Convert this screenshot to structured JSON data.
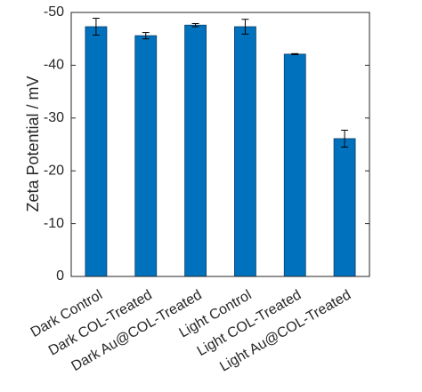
{
  "chart_data": {
    "type": "bar",
    "y_label": "Zeta Potential / mV",
    "categories": [
      "Dark Control",
      "Dark COL-Treated",
      "Dark Au@COL-Treated",
      "Light Control",
      "Light COL-Treated",
      "Light Au@COL-Treated"
    ],
    "values": [
      -47.3,
      -45.6,
      -47.6,
      -47.3,
      -42.1,
      -26.1
    ],
    "errors": [
      1.6,
      0.6,
      0.3,
      1.4,
      0.1,
      1.6
    ],
    "color": "#0072bd",
    "ylim": [
      0,
      -50
    ],
    "yticks": [
      0,
      -10,
      -20,
      -30,
      -40,
      -50
    ],
    "grid": false
  }
}
